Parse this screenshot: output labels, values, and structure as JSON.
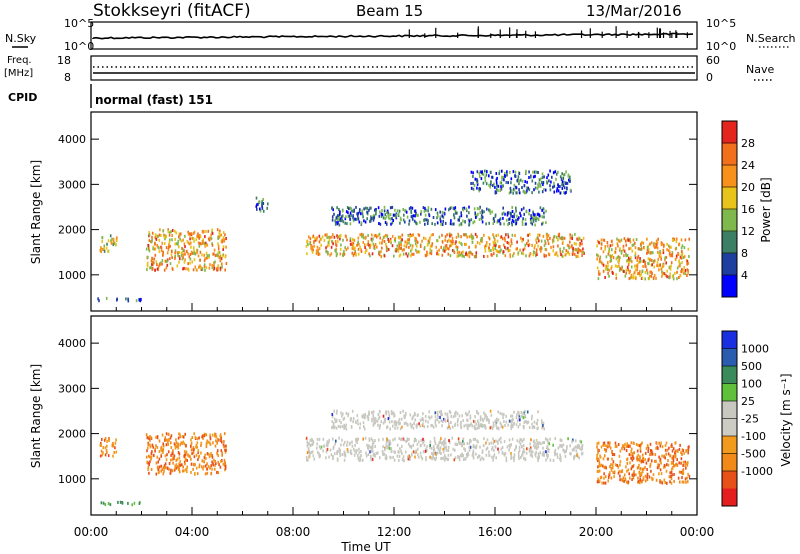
{
  "header": {
    "station": "Stokkseyri (fitACF)",
    "beam": "Beam 15",
    "date": "13/Mar/2016"
  },
  "status_panels": {
    "nsky_label": "N.Sky",
    "nsky_ticks": [
      "10^5",
      "10^0"
    ],
    "nsearch_label": "N.Search",
    "nsearch_ticks": [
      "10^5",
      "10^0"
    ],
    "freq_label": "Freq.",
    "freq_unit": "[MHz]",
    "freq_ticks": [
      "18",
      "8"
    ],
    "nave_label": "Nave",
    "nave_ticks": [
      "60",
      "0"
    ],
    "cpid_label": "CPID",
    "cpid_value": "normal (fast) 151"
  },
  "colors": {
    "power_scale": [
      "#0000ff",
      "#1e3fa0",
      "#3c7f64",
      "#7fb84c",
      "#e8c31a",
      "#f7911c",
      "#f26f1b",
      "#e4251e"
    ],
    "velocity_scale": [
      "#1a2fe0",
      "#2a5cb0",
      "#3a8a5a",
      "#60c03a",
      "#c8c8c0",
      "#ccccc4",
      "#f29a1e",
      "#f28a1a",
      "#e8501a",
      "#e41e1e"
    ]
  },
  "chart_data": [
    {
      "type": "heatmap",
      "panel": "power",
      "ylabel": "Slant Range [km]",
      "yticks": [
        1000,
        2000,
        3000,
        4000
      ],
      "ylim": [
        200,
        4600
      ],
      "xlim_hours": [
        0,
        24
      ],
      "colorbar_label": "Power [dB]",
      "colorbar_ticks": [
        "4",
        "8",
        "12",
        "16",
        "20",
        "24",
        "28"
      ],
      "colorbar_range": [
        0,
        32
      ],
      "echo_regions": [
        {
          "t_start": "00:20",
          "t_end": "01:00",
          "range_km": [
            1500,
            1900
          ],
          "level": "medium"
        },
        {
          "t_start": "02:10",
          "t_end": "05:20",
          "range_km": [
            1100,
            2000
          ],
          "level": "high"
        },
        {
          "t_start": "00:00",
          "t_end": "02:00",
          "range_km": [
            420,
            480
          ],
          "level": "low"
        },
        {
          "t_start": "06:30",
          "t_end": "07:00",
          "range_km": [
            2400,
            2700
          ],
          "level": "low"
        },
        {
          "t_start": "08:30",
          "t_end": "19:30",
          "range_km": [
            1400,
            1900
          ],
          "level": "high"
        },
        {
          "t_start": "09:30",
          "t_end": "18:00",
          "range_km": [
            2100,
            2500
          ],
          "level": "low"
        },
        {
          "t_start": "15:00",
          "t_end": "19:00",
          "range_km": [
            2800,
            3300
          ],
          "level": "low"
        },
        {
          "t_start": "20:00",
          "t_end": "23:40",
          "range_km": [
            900,
            1800
          ],
          "level": "high"
        }
      ]
    },
    {
      "type": "heatmap",
      "panel": "velocity",
      "ylabel": "Slant Range [km]",
      "yticks": [
        1000,
        2000,
        3000,
        4000
      ],
      "ylim": [
        200,
        4600
      ],
      "xlim_hours": [
        0,
        24
      ],
      "xticks": [
        "00:00",
        "04:00",
        "08:00",
        "12:00",
        "16:00",
        "20:00",
        "00:00"
      ],
      "xlabel": "Time UT",
      "colorbar_label": "Velocity [m s⁻¹]",
      "colorbar_ticks": [
        "1000",
        "500",
        "100",
        "25",
        "-25",
        "-100",
        "-500",
        "-1000"
      ],
      "echo_regions": [
        {
          "t_start": "00:20",
          "t_end": "01:00",
          "range_km": [
            1500,
            1900
          ],
          "level": "negative"
        },
        {
          "t_start": "02:10",
          "t_end": "05:20",
          "range_km": [
            1100,
            2000
          ],
          "level": "negative"
        },
        {
          "t_start": "00:00",
          "t_end": "02:00",
          "range_km": [
            420,
            480
          ],
          "level": "positive"
        },
        {
          "t_start": "08:30",
          "t_end": "19:30",
          "range_km": [
            1400,
            1900
          ],
          "level": "zero"
        },
        {
          "t_start": "09:30",
          "t_end": "18:00",
          "range_km": [
            2100,
            2500
          ],
          "level": "zero"
        },
        {
          "t_start": "20:00",
          "t_end": "23:40",
          "range_km": [
            900,
            1800
          ],
          "level": "negative"
        }
      ]
    }
  ]
}
